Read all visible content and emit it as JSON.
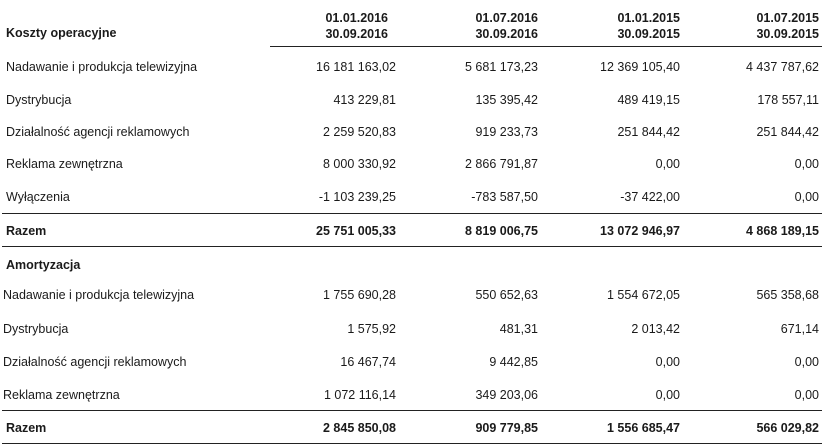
{
  "header": {
    "title": "Koszty operacyjne",
    "periods": [
      {
        "from": "01.01.2016",
        "to": "30.09.2016"
      },
      {
        "from": "01.07.2016",
        "to": "30.09.2016"
      },
      {
        "from": "01.01.2015",
        "to": "30.09.2015"
      },
      {
        "from": "01.07.2015",
        "to": "30.09.2015"
      }
    ]
  },
  "operating_costs": {
    "rows": [
      {
        "label": "Nadawanie i produkcja telewizyjna",
        "values": [
          "16 181 163,02",
          "5 681 173,23",
          "12 369 105,40",
          "4 437 787,62"
        ]
      },
      {
        "label": "Dystrybucja",
        "values": [
          "413 229,81",
          "135 395,42",
          "489 419,15",
          "178 557,11"
        ]
      },
      {
        "label": "Działalność agencji reklamowych",
        "values": [
          "2 259 520,83",
          "919 233,73",
          "251 844,42",
          "251 844,42"
        ]
      },
      {
        "label": "Reklama zewnętrzna",
        "values": [
          "8 000 330,92",
          "2 866 791,87",
          "0,00",
          "0,00"
        ]
      },
      {
        "label": "Wyłączenia",
        "values": [
          "-1 103 239,25",
          "-783 587,50",
          "-37 422,00",
          "0,00"
        ]
      }
    ],
    "total": {
      "label": "Razem",
      "values": [
        "25 751 005,33",
        "8 819 006,75",
        "13 072 946,97",
        "4 868 189,15"
      ]
    }
  },
  "amortization": {
    "title": "Amortyzacja",
    "rows": [
      {
        "label": "Nadawanie i produkcja telewizyjna",
        "values": [
          "1 755 690,28",
          "550 652,63",
          "1 554 672,05",
          "565 358,68"
        ]
      },
      {
        "label": "Dystrybucja",
        "values": [
          "1 575,92",
          "481,31",
          "2 013,42",
          "671,14"
        ]
      },
      {
        "label": "Działalność agencji reklamowych",
        "values": [
          "16 467,74",
          "9 442,85",
          "0,00",
          "0,00"
        ]
      },
      {
        "label": "Reklama zewnętrzna",
        "values": [
          "1 072 116,14",
          "349 203,06",
          "0,00",
          "0,00"
        ]
      }
    ],
    "total": {
      "label": "Razem",
      "values": [
        "2 845 850,08",
        "909 779,85",
        "1 556 685,47",
        "566 029,82"
      ]
    }
  }
}
